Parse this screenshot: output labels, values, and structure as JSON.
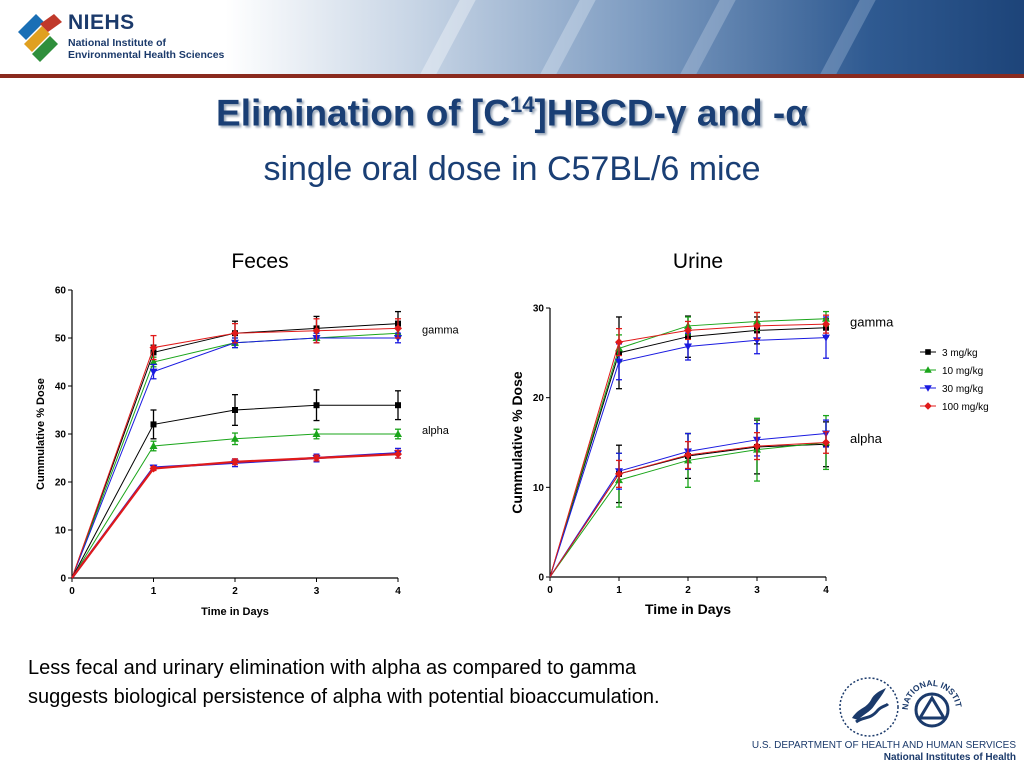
{
  "header": {
    "logo_name": "NIEHS",
    "logo_sub_1": "National Institute of",
    "logo_sub_2": "Environmental Health Sciences"
  },
  "title": {
    "main_prefix": "Elimination of [C",
    "main_sup": "14",
    "main_suffix": "]HBCD-γ and -α",
    "subtitle": "single oral dose in C57BL/6 mice"
  },
  "caption": {
    "line1": "Less fecal and urinary elimination with alpha as compared to gamma",
    "line2": "suggests biological persistence of alpha with potential bioaccumulation."
  },
  "footer": {
    "dept": "U.S. DEPARTMENT OF HEALTH AND HUMAN SERVICES",
    "nih": "National Institutes of Health",
    "nih_seal_text": "NATIONAL INSTITUTES OF HEALTH"
  },
  "legend": {
    "entries": [
      {
        "name": "3 mg/kg",
        "color": "#000000",
        "marker": "square"
      },
      {
        "name": "10 mg/kg",
        "color": "#1aa51a",
        "marker": "triangle-up"
      },
      {
        "name": "30 mg/kg",
        "color": "#1a1ae0",
        "marker": "triangle-down"
      },
      {
        "name": "100 mg/kg",
        "color": "#e01a1a",
        "marker": "diamond"
      }
    ]
  },
  "chart_data": [
    {
      "type": "line",
      "title": "Feces",
      "xlabel": "Time in Days",
      "ylabel": "Cummulative % Dose",
      "x": [
        0,
        1,
        2,
        3,
        4
      ],
      "xlim": [
        0,
        4
      ],
      "ylim": [
        0,
        60
      ],
      "yticks": [
        0,
        10,
        20,
        30,
        40,
        50,
        60
      ],
      "xticks": [
        0,
        1,
        2,
        3,
        4
      ],
      "group_labels": [
        {
          "text": "gamma",
          "y": 52
        },
        {
          "text": "alpha",
          "y": 31
        }
      ],
      "series": [
        {
          "name": "3 mg/kg",
          "group": "gamma",
          "values": [
            0,
            47,
            51,
            52,
            53
          ],
          "err": [
            0,
            1.5,
            2.5,
            2.5,
            2.5
          ]
        },
        {
          "name": "10 mg/kg",
          "group": "gamma",
          "values": [
            0,
            45,
            49,
            50,
            51
          ],
          "err": [
            0,
            1,
            1,
            1,
            1
          ]
        },
        {
          "name": "30 mg/kg",
          "group": "gamma",
          "values": [
            0,
            43,
            49,
            50,
            50
          ],
          "err": [
            0,
            1.5,
            1,
            1,
            1
          ]
        },
        {
          "name": "100 mg/kg",
          "group": "gamma",
          "values": [
            0,
            48,
            51,
            51.5,
            52
          ],
          "err": [
            0,
            2.5,
            2,
            2.5,
            2
          ]
        },
        {
          "name": "3 mg/kg",
          "group": "alpha",
          "values": [
            0,
            32,
            35,
            36,
            36
          ],
          "err": [
            0,
            3,
            3.2,
            3.2,
            3
          ]
        },
        {
          "name": "10 mg/kg",
          "group": "alpha",
          "values": [
            0,
            27.5,
            29,
            30,
            30
          ],
          "err": [
            0,
            1,
            1.2,
            1,
            1
          ]
        },
        {
          "name": "30 mg/kg",
          "group": "alpha",
          "values": [
            0,
            23,
            24,
            25,
            26
          ],
          "err": [
            0,
            0.5,
            0.8,
            0.8,
            1
          ]
        },
        {
          "name": "100 mg/kg",
          "group": "alpha",
          "values": [
            0,
            22.8,
            24.2,
            25,
            25.8
          ],
          "err": [
            0,
            0.4,
            0.6,
            0.6,
            0.8
          ]
        }
      ]
    },
    {
      "type": "line",
      "title": "Urine",
      "xlabel": "Time in Days",
      "ylabel": "Cummulative % Dose",
      "x": [
        0,
        1,
        2,
        3,
        4
      ],
      "xlim": [
        0,
        4
      ],
      "ylim": [
        0,
        30
      ],
      "yticks": [
        0,
        10,
        20,
        30
      ],
      "xticks": [
        0,
        1,
        2,
        3,
        4
      ],
      "group_labels": [
        {
          "text": "gamma",
          "y": 28.5
        },
        {
          "text": "alpha",
          "y": 15.5
        }
      ],
      "series": [
        {
          "name": "3 mg/kg",
          "group": "gamma",
          "values": [
            0,
            25,
            26.8,
            27.5,
            27.8
          ],
          "err": [
            0,
            4,
            2.3,
            1.5,
            1
          ]
        },
        {
          "name": "10 mg/kg",
          "group": "gamma",
          "values": [
            0,
            25.5,
            28,
            28.5,
            28.8
          ],
          "err": [
            0,
            1.5,
            1,
            1,
            0.8
          ]
        },
        {
          "name": "30 mg/kg",
          "group": "gamma",
          "values": [
            0,
            24,
            25.7,
            26.4,
            26.7
          ],
          "err": [
            0,
            2,
            1.5,
            1.5,
            2.3
          ]
        },
        {
          "name": "100 mg/kg",
          "group": "gamma",
          "values": [
            0,
            26.2,
            27.5,
            28,
            28.2
          ],
          "err": [
            0,
            1.5,
            1,
            1.5,
            1
          ]
        },
        {
          "name": "3 mg/kg",
          "group": "alpha",
          "values": [
            0,
            11.5,
            13.5,
            14.5,
            14.8
          ],
          "err": [
            0,
            3.2,
            2.5,
            3,
            2.5
          ]
        },
        {
          "name": "10 mg/kg",
          "group": "alpha",
          "values": [
            0,
            10.8,
            13,
            14.2,
            15
          ],
          "err": [
            0,
            3,
            3,
            3.5,
            3
          ]
        },
        {
          "name": "30 mg/kg",
          "group": "alpha",
          "values": [
            0,
            11.8,
            14,
            15.3,
            16
          ],
          "err": [
            0,
            2,
            2,
            1.8,
            1.5
          ]
        },
        {
          "name": "100 mg/kg",
          "group": "alpha",
          "values": [
            0,
            11.5,
            13.6,
            14.6,
            15
          ],
          "err": [
            0,
            1.5,
            1.5,
            1.5,
            1.2
          ]
        }
      ]
    }
  ]
}
